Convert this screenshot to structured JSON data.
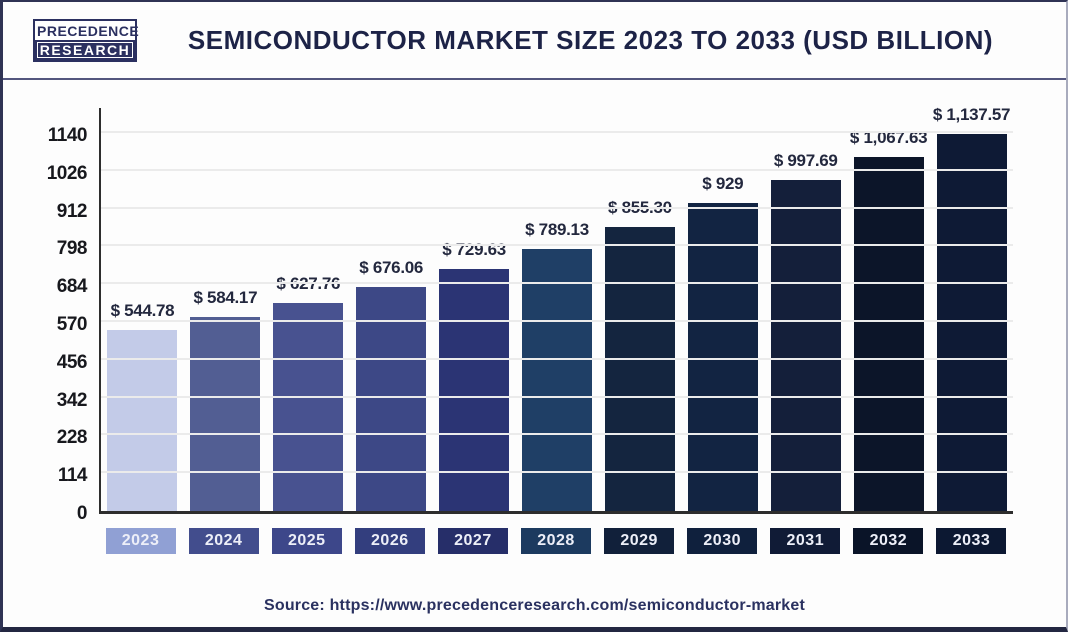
{
  "header": {
    "logo": {
      "line1": "PRECEDENCE",
      "line2": "RESEARCH"
    },
    "title": "SEMICONDUCTOR MARKET SIZE 2023 TO 2033 (USD BILLION)"
  },
  "chart_data": {
    "type": "bar",
    "title": "Semiconductor Market Size 2023 to 2033 (USD Billion)",
    "unit": "USD Billion",
    "categories": [
      "2023",
      "2024",
      "2025",
      "2026",
      "2027",
      "2028",
      "2029",
      "2030",
      "2031",
      "2032",
      "2033"
    ],
    "values": [
      544.78,
      584.17,
      627.76,
      676.06,
      729.63,
      789.13,
      855.3,
      929,
      997.69,
      1067.63,
      1137.57
    ],
    "value_labels": [
      "$ 544.78",
      "$ 584.17",
      "$ 627.76",
      "$ 676.06",
      "$ 729.63",
      "$ 789.13",
      "$ 855.30",
      "$ 929",
      "$ 997.69",
      "$ 1,067.63",
      "$ 1,137.57"
    ],
    "bar_colors": [
      "#c3cbe8",
      "#525e93",
      "#485290",
      "#3d4886",
      "#2b3474",
      "#1f3f66",
      "#14253f",
      "#122442",
      "#141f3a",
      "#0c1529",
      "#0e1a35"
    ],
    "category_label_colors": [
      "#90a0d4",
      "#424d8d",
      "#3d478a",
      "#333e7e",
      "#262e69",
      "#1c3a5f",
      "#11203a",
      "#0f203d",
      "#101b36",
      "#0a1428",
      "#0c1832"
    ],
    "yticks": [
      0,
      114,
      228,
      342,
      456,
      570,
      684,
      798,
      912,
      1026,
      1140
    ],
    "ylim": [
      0,
      1140
    ],
    "xlabel": "",
    "ylabel": "",
    "grid": "horizontal",
    "legend": "none"
  },
  "footer": {
    "source": "Source: https://www.precedenceresearch.com/semiconductor-market"
  }
}
